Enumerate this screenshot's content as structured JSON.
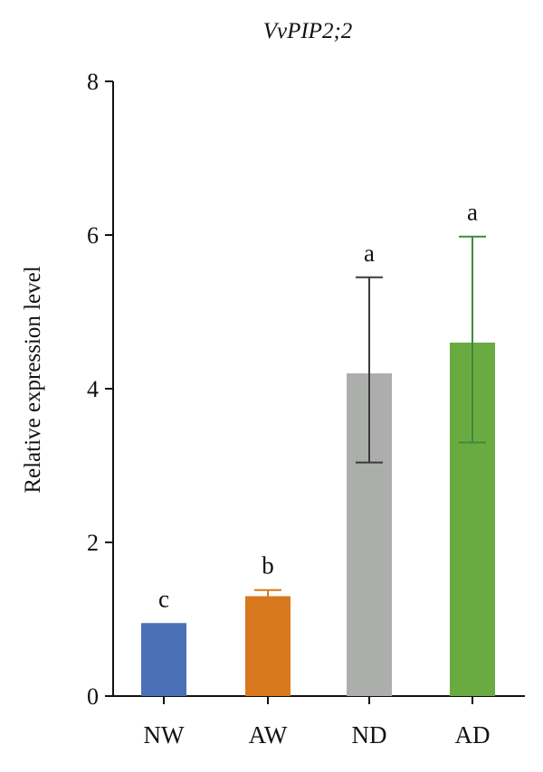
{
  "chart_data": {
    "type": "bar",
    "title": "VvPIP2;2",
    "xlabel": "",
    "ylabel": "Relative expression level",
    "ylim": [
      0,
      8
    ],
    "yticks": [
      "0",
      "2",
      "4",
      "6",
      "8"
    ],
    "categories": [
      "NW",
      "AW",
      "ND",
      "AD"
    ],
    "values": [
      0.95,
      1.3,
      4.2,
      4.6
    ],
    "error_upper": [
      0.95,
      1.38,
      5.45,
      5.98
    ],
    "error_lower": [
      0.95,
      1.3,
      3.04,
      3.3
    ],
    "significance_letters": [
      "c",
      "b",
      "a",
      "a"
    ],
    "colors": [
      "#4a70b5",
      "#d8781e",
      "#acaeac",
      "#6aab41"
    ],
    "error_colors": [
      "#4a70b5",
      "#d8781e",
      "#3a3a3a",
      "#3f8a3a"
    ],
    "grid": false,
    "legend": "none"
  }
}
